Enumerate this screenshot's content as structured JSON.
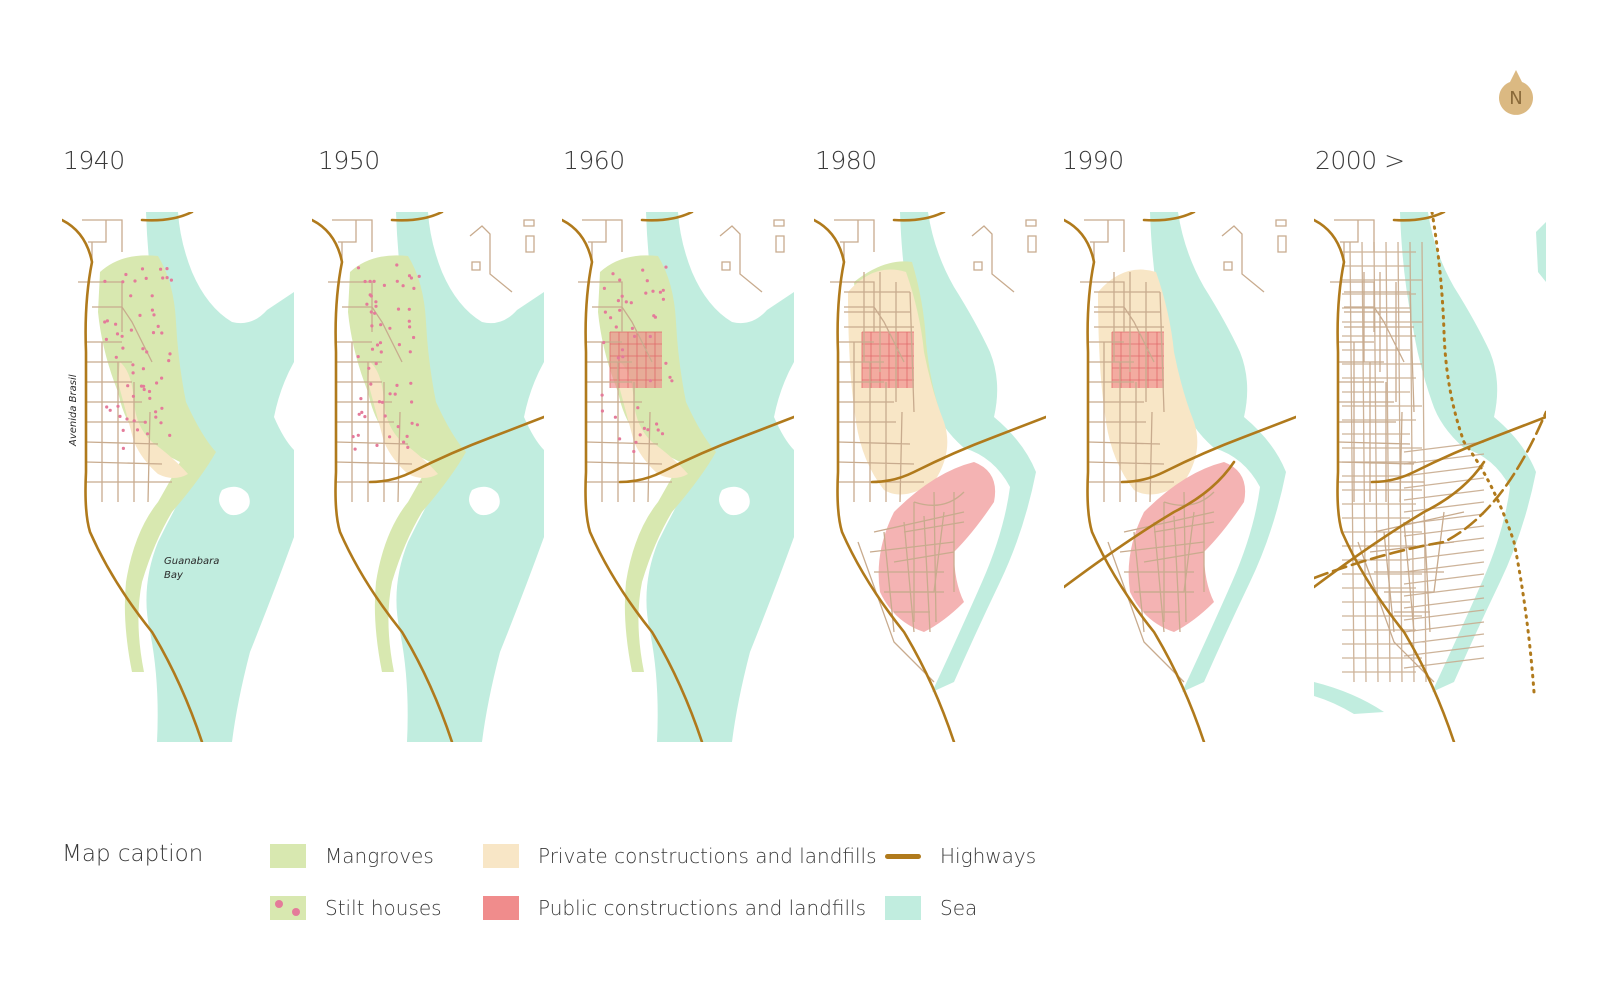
{
  "north_label": "N",
  "timeline": [
    {
      "year": "1940",
      "show_labels": true
    },
    {
      "year": "1950",
      "show_labels": false
    },
    {
      "year": "1960",
      "show_labels": false
    },
    {
      "year": "1980",
      "show_labels": false
    },
    {
      "year": "1990",
      "show_labels": false
    },
    {
      "year": "2000 >",
      "show_labels": false
    }
  ],
  "map_labels": {
    "avenue": "Avenida Brasil",
    "bay_line1": "Guanabara",
    "bay_line2": "Bay"
  },
  "legend": {
    "title": "Map caption",
    "items": [
      {
        "key": "mangroves",
        "label": "Mangroves",
        "color": "#d8e8b0"
      },
      {
        "key": "stilt",
        "label": "Stilt houses",
        "color": "#d8e8b0",
        "dot_color": "#e47b9a"
      },
      {
        "key": "private",
        "label": "Private constructions and landfills",
        "color": "#f8e6c6"
      },
      {
        "key": "public",
        "label": "Public constructions and landfills",
        "color": "#f08c8c"
      },
      {
        "key": "highways",
        "label": "Highways",
        "color": "#b07a1c"
      },
      {
        "key": "sea",
        "label": "Sea",
        "color": "#c1eddf"
      }
    ]
  },
  "colors": {
    "mangrove": "#d8e8b0",
    "stilt_dot": "#e47b9a",
    "private": "#f8e6c6",
    "public": "#f4b3b3",
    "public_dark": "#f08c8c",
    "sea": "#c1eddf",
    "highway": "#b07a1c",
    "road": "#c8ab8e",
    "north_badge": "#dbb982"
  }
}
